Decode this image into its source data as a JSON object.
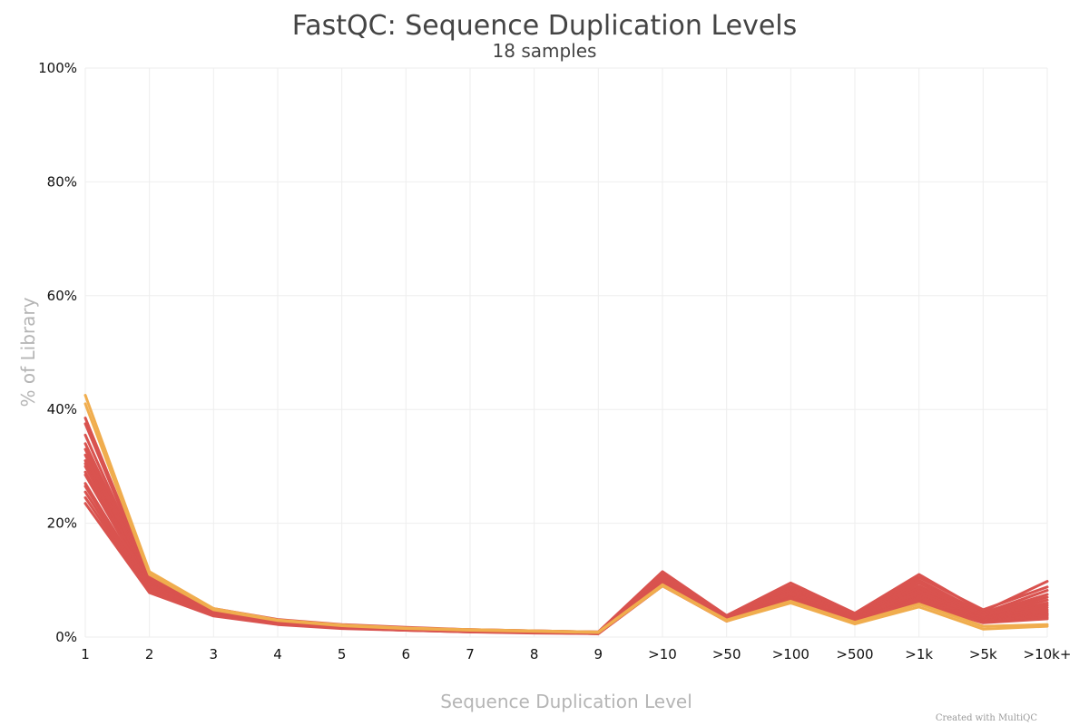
{
  "chart_data": {
    "type": "line",
    "title": "FastQC: Sequence Duplication Levels",
    "subtitle": "18 samples",
    "xlabel": "Sequence Duplication Level",
    "ylabel": "% of Library",
    "categories": [
      "1",
      "2",
      "3",
      "4",
      "5",
      "6",
      "7",
      "8",
      "9",
      ">10",
      ">50",
      ">100",
      ">500",
      ">1k",
      ">5k",
      ">10k+"
    ],
    "ylim": [
      0,
      100
    ],
    "yticks": [
      "0%",
      "20%",
      "40%",
      "60%",
      "80%",
      "100%"
    ],
    "ytick_values": [
      0,
      20,
      40,
      60,
      80,
      100
    ],
    "grid": true,
    "credit": "Created with MultiQC",
    "series": [
      {
        "color": "#d9534f",
        "values": [
          38.5,
          10.8,
          5.0,
          3.1,
          2.2,
          1.7,
          1.3,
          1.1,
          0.9,
          11.5,
          3.8,
          9.5,
          4.2,
          11.0,
          4.5,
          9.8
        ]
      },
      {
        "color": "#d9534f",
        "values": [
          37.5,
          10.5,
          4.9,
          3.0,
          2.1,
          1.6,
          1.3,
          1.1,
          0.9,
          11.0,
          3.6,
          9.0,
          4.0,
          10.5,
          4.8,
          8.8
        ]
      },
      {
        "color": "#d9534f",
        "values": [
          35.5,
          10.2,
          4.7,
          2.9,
          2.0,
          1.6,
          1.2,
          1.0,
          0.8,
          10.8,
          3.5,
          8.6,
          3.8,
          10.0,
          4.2,
          8.2
        ]
      },
      {
        "color": "#d9534f",
        "values": [
          34.0,
          10.0,
          4.6,
          2.8,
          2.0,
          1.5,
          1.2,
          1.0,
          0.8,
          10.5,
          3.4,
          8.3,
          3.6,
          9.5,
          4.0,
          7.5
        ]
      },
      {
        "color": "#d9534f",
        "values": [
          33.0,
          9.8,
          4.5,
          2.8,
          1.9,
          1.5,
          1.2,
          1.0,
          0.8,
          10.2,
          3.3,
          8.0,
          3.5,
          9.0,
          3.8,
          7.0
        ]
      },
      {
        "color": "#d9534f",
        "values": [
          32.0,
          9.6,
          4.4,
          2.7,
          1.9,
          1.5,
          1.1,
          0.9,
          0.8,
          10.0,
          3.2,
          7.8,
          3.4,
          8.6,
          3.6,
          6.5
        ]
      },
      {
        "color": "#d9534f",
        "values": [
          31.0,
          9.4,
          4.3,
          2.7,
          1.8,
          1.4,
          1.1,
          0.9,
          0.7,
          9.8,
          3.1,
          7.5,
          3.3,
          8.2,
          3.4,
          6.0
        ]
      },
      {
        "color": "#d9534f",
        "values": [
          30.5,
          9.3,
          4.3,
          2.6,
          1.8,
          1.4,
          1.1,
          0.9,
          0.7,
          9.7,
          3.1,
          7.3,
          3.2,
          8.0,
          3.3,
          5.6
        ]
      },
      {
        "color": "#d9534f",
        "values": [
          30.0,
          9.2,
          4.2,
          2.6,
          1.8,
          1.4,
          1.1,
          0.9,
          0.7,
          9.6,
          3.0,
          7.1,
          3.1,
          7.6,
          3.2,
          5.2
        ]
      },
      {
        "color": "#d9534f",
        "values": [
          29.0,
          9.0,
          4.2,
          2.5,
          1.7,
          1.3,
          1.0,
          0.9,
          0.7,
          9.5,
          3.0,
          7.0,
          3.0,
          7.2,
          3.1,
          4.8
        ]
      },
      {
        "color": "#d9534f",
        "values": [
          28.5,
          8.9,
          4.1,
          2.5,
          1.7,
          1.3,
          1.0,
          0.8,
          0.7,
          9.4,
          3.0,
          6.9,
          2.9,
          7.0,
          3.0,
          4.5
        ]
      },
      {
        "color": "#d9534f",
        "values": [
          27.0,
          8.6,
          4.0,
          2.4,
          1.7,
          1.3,
          1.0,
          0.8,
          0.7,
          9.3,
          2.9,
          6.8,
          2.9,
          6.8,
          2.9,
          4.2
        ]
      },
      {
        "color": "#d9534f",
        "values": [
          26.5,
          8.4,
          3.9,
          2.4,
          1.6,
          1.3,
          1.0,
          0.8,
          0.6,
          9.2,
          2.9,
          6.7,
          2.8,
          6.5,
          2.8,
          4.0
        ]
      },
      {
        "color": "#d9534f",
        "values": [
          25.5,
          8.2,
          3.9,
          2.3,
          1.6,
          1.2,
          1.0,
          0.8,
          0.6,
          9.1,
          2.9,
          6.6,
          2.8,
          6.3,
          2.7,
          3.8
        ]
      },
      {
        "color": "#d9534f",
        "values": [
          24.5,
          8.0,
          3.8,
          2.3,
          1.6,
          1.2,
          0.9,
          0.8,
          0.6,
          9.0,
          2.8,
          6.5,
          2.7,
          6.0,
          2.6,
          3.5
        ]
      },
      {
        "color": "#d9534f",
        "values": [
          23.5,
          7.8,
          3.7,
          2.2,
          1.5,
          1.2,
          0.9,
          0.7,
          0.6,
          9.0,
          2.8,
          6.4,
          2.7,
          5.8,
          2.5,
          3.2
        ]
      },
      {
        "color": "#f0ad4e",
        "values": [
          42.5,
          11.5,
          5.0,
          3.0,
          2.1,
          1.6,
          1.3,
          1.1,
          0.9,
          9.2,
          3.0,
          6.3,
          2.6,
          5.8,
          1.9,
          2.2
        ]
      },
      {
        "color": "#f0ad4e",
        "values": [
          41.0,
          11.0,
          4.8,
          2.9,
          2.0,
          1.5,
          1.2,
          1.0,
          0.8,
          9.0,
          2.8,
          6.0,
          2.3,
          5.3,
          1.4,
          1.9
        ]
      }
    ]
  }
}
